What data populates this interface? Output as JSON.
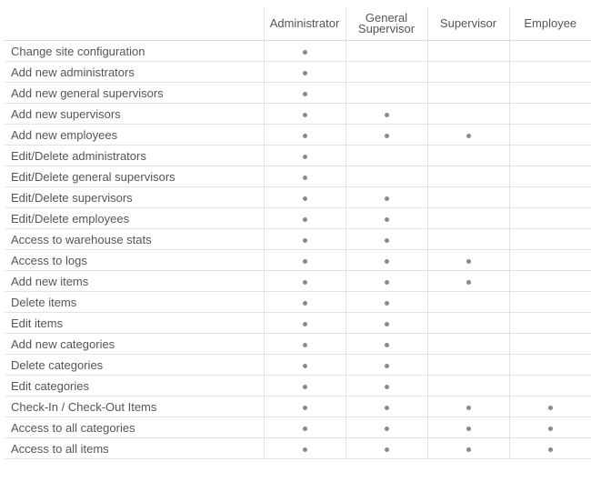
{
  "columns": [
    {
      "line1": "Administrator",
      "line2": ""
    },
    {
      "line1": "General",
      "line2": "Supervisor"
    },
    {
      "line1": "Supervisor",
      "line2": ""
    },
    {
      "line1": "Employee",
      "line2": ""
    }
  ],
  "rows": [
    {
      "label": "Change site configuration",
      "perms": [
        1,
        0,
        0,
        0
      ]
    },
    {
      "label": "Add new administrators",
      "perms": [
        1,
        0,
        0,
        0
      ]
    },
    {
      "label": "Add new general supervisors",
      "perms": [
        1,
        0,
        0,
        0
      ]
    },
    {
      "label": "Add new supervisors",
      "perms": [
        1,
        1,
        0,
        0
      ]
    },
    {
      "label": "Add new employees",
      "perms": [
        1,
        1,
        1,
        0
      ]
    },
    {
      "label": "Edit/Delete administrators",
      "perms": [
        1,
        0,
        0,
        0
      ]
    },
    {
      "label": "Edit/Delete general supervisors",
      "perms": [
        1,
        0,
        0,
        0
      ]
    },
    {
      "label": "Edit/Delete supervisors",
      "perms": [
        1,
        1,
        0,
        0
      ]
    },
    {
      "label": "Edit/Delete employees",
      "perms": [
        1,
        1,
        0,
        0
      ]
    },
    {
      "label": "Access to warehouse stats",
      "perms": [
        1,
        1,
        0,
        0
      ]
    },
    {
      "label": "Access to logs",
      "perms": [
        1,
        1,
        1,
        0
      ]
    },
    {
      "label": "Add new items",
      "perms": [
        1,
        1,
        1,
        0
      ]
    },
    {
      "label": "Delete items",
      "perms": [
        1,
        1,
        0,
        0
      ]
    },
    {
      "label": "Edit items",
      "perms": [
        1,
        1,
        0,
        0
      ]
    },
    {
      "label": "Add new categories",
      "perms": [
        1,
        1,
        0,
        0
      ]
    },
    {
      "label": "Delete categories",
      "perms": [
        1,
        1,
        0,
        0
      ]
    },
    {
      "label": "Edit categories",
      "perms": [
        1,
        1,
        0,
        0
      ]
    },
    {
      "label": "Check-In / Check-Out Items",
      "perms": [
        1,
        1,
        1,
        1
      ]
    },
    {
      "label": "Access to all categories",
      "perms": [
        1,
        1,
        1,
        1
      ]
    },
    {
      "label": "Access to all items",
      "perms": [
        1,
        1,
        1,
        1
      ]
    }
  ],
  "colors": {
    "text": "#555555",
    "dot": "#8a8a8a",
    "grid": "#e3e3e3"
  }
}
